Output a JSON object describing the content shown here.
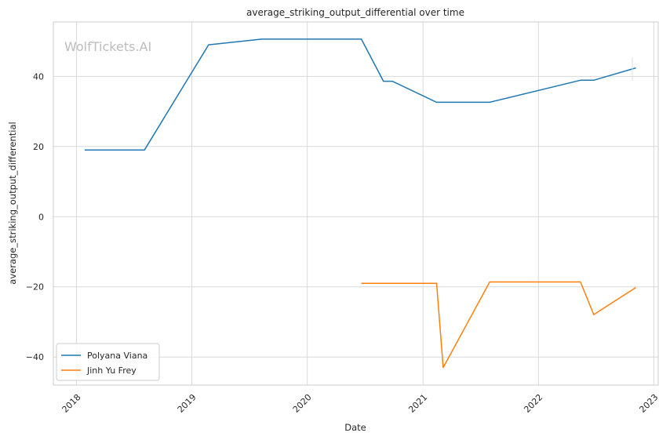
{
  "chart_data": {
    "type": "line",
    "title": "average_striking_output_differential over time",
    "xlabel": "Date",
    "ylabel": "average_striking_output_differential",
    "watermark": "WolfTickets.AI",
    "x_ticks": [
      "2018",
      "2019",
      "2020",
      "2021",
      "2022",
      "2023"
    ],
    "y_ticks": [
      -40,
      -20,
      0,
      20,
      40
    ],
    "xlim": [
      "2017-10-20",
      "2023-01-15"
    ],
    "ylim": [
      -48,
      55.5
    ],
    "grid": true,
    "legend_position": "lower-left",
    "series": [
      {
        "name": "Polyana Viana",
        "color": "#1f77b4",
        "points": [
          [
            "2018-01-27",
            19.0
          ],
          [
            "2018-08-04",
            19.0
          ],
          [
            "2019-02-23",
            49.0
          ],
          [
            "2019-08-10",
            50.6
          ],
          [
            "2020-06-20",
            50.6
          ],
          [
            "2020-08-29",
            38.6
          ],
          [
            "2020-09-26",
            38.6
          ],
          [
            "2021-02-13",
            32.6
          ],
          [
            "2021-07-31",
            32.6
          ],
          [
            "2022-05-14",
            38.9
          ],
          [
            "2022-06-25",
            38.9
          ],
          [
            "2022-11-05",
            42.4
          ]
        ]
      },
      {
        "name": "Jinh Yu Frey",
        "color": "#ff7f0e",
        "points": [
          [
            "2020-06-20",
            -19.0
          ],
          [
            "2021-02-13",
            -19.0
          ],
          [
            "2021-03-06",
            -43.0
          ],
          [
            "2021-07-31",
            -18.6
          ],
          [
            "2022-05-14",
            -18.6
          ],
          [
            "2022-06-25",
            -27.9
          ],
          [
            "2022-11-05",
            -20.2
          ]
        ]
      }
    ]
  }
}
